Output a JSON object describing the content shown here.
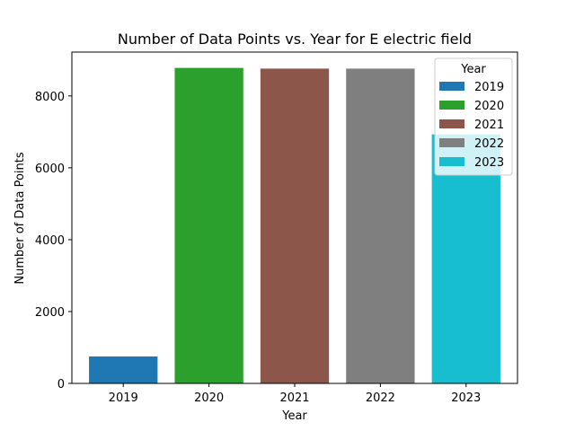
{
  "chart_data": {
    "type": "bar",
    "title": "Number of Data Points vs. Year for E electric field",
    "xlabel": "Year",
    "ylabel": "Number of Data Points",
    "categories": [
      "2019",
      "2020",
      "2021",
      "2022",
      "2023"
    ],
    "values": [
      750,
      8780,
      8760,
      8760,
      6930
    ],
    "colors": [
      "#1f77b4",
      "#2ca02c",
      "#8c564b",
      "#7f7f7f",
      "#17becf"
    ],
    "ylim": [
      0,
      9220
    ],
    "yticks": [
      0,
      2000,
      4000,
      6000,
      8000
    ],
    "grid": false,
    "legend": {
      "title": "Year",
      "placement": "top-right",
      "entries": [
        "2019",
        "2020",
        "2021",
        "2022",
        "2023"
      ]
    }
  }
}
